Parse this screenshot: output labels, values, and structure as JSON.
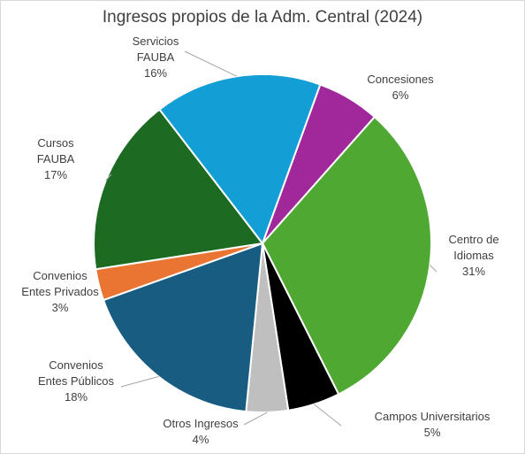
{
  "chart_data": {
    "type": "pie",
    "title": "Ingresos propios de la Adm. Central (2024)",
    "slices": [
      {
        "lines": [
          "Concesiones",
          "6%"
        ],
        "value": 6,
        "color": "#a0289b"
      },
      {
        "lines": [
          "Centro de",
          "Idiomas",
          "31%"
        ],
        "value": 31,
        "color": "#4fa832"
      },
      {
        "lines": [
          "Campos Universitarios",
          "5%"
        ],
        "value": 5,
        "color": "#000000"
      },
      {
        "lines": [
          "Otros Ingresos",
          "4%"
        ],
        "value": 4,
        "color": "#bfbfbf"
      },
      {
        "lines": [
          "Convenios",
          "Entes Públicos",
          "18%"
        ],
        "value": 18,
        "color": "#185c82"
      },
      {
        "lines": [
          "Convenios",
          "Entes Privados",
          "3%"
        ],
        "value": 3,
        "color": "#ea7432"
      },
      {
        "lines": [
          "Cursos",
          "FAUBA",
          "17%"
        ],
        "value": 17,
        "color": "#1d6b23"
      },
      {
        "lines": [
          "Servicios",
          "FAUBA",
          "16%"
        ],
        "value": 16,
        "color": "#149ed6"
      }
    ],
    "start_angle_deg": 20,
    "slice_border_color": "#ffffff",
    "leader_line_color": "#a6a6a6",
    "label_color": "#404040",
    "legend": "none"
  }
}
